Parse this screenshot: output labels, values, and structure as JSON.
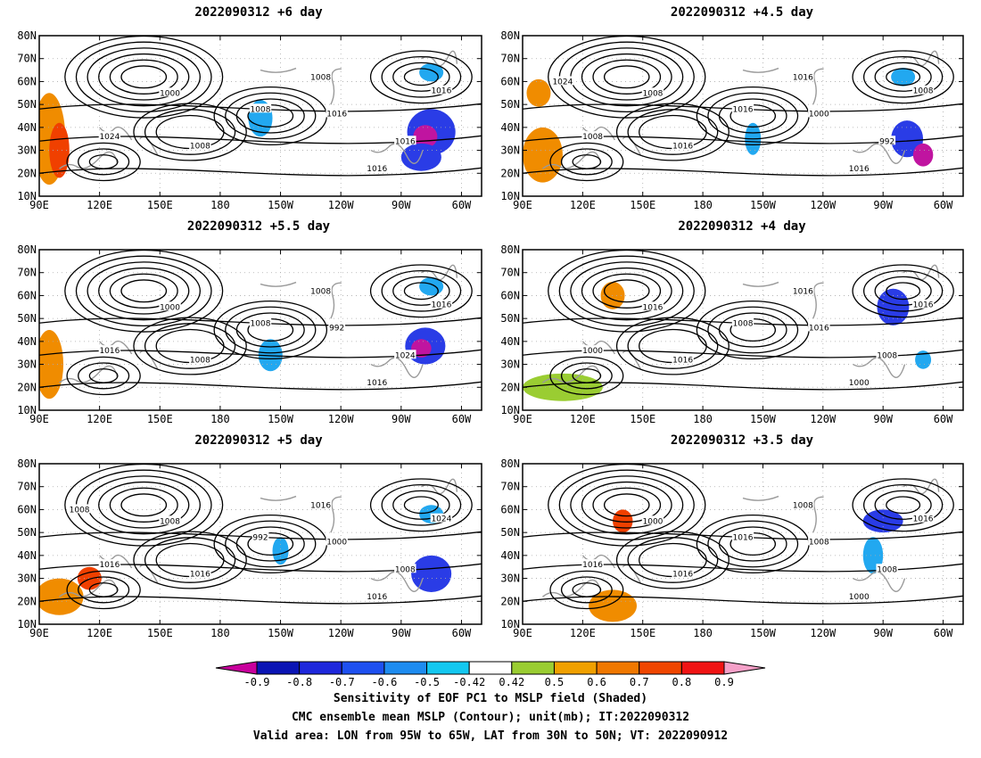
{
  "panels": [
    {
      "title": "2022090312 +6 day",
      "contour_labels": [
        "1000",
        "1008",
        "1016",
        "1024",
        "1016",
        "1016",
        "1016",
        "1008",
        "1008"
      ],
      "sensitivity_blobs": [
        {
          "lon": -75,
          "lat": 38,
          "rx": 12,
          "ry": 10,
          "level": "neg"
        },
        {
          "lon": -78,
          "lat": 36,
          "rx": 6,
          "ry": 5,
          "level": "neg-strong"
        },
        {
          "lon": -80,
          "lat": 27,
          "rx": 10,
          "ry": 6,
          "level": "neg"
        },
        {
          "lon": -75,
          "lat": 64,
          "rx": 6,
          "ry": 4,
          "level": "neg-weak"
        },
        {
          "lon": -160,
          "lat": 44,
          "rx": 6,
          "ry": 8,
          "level": "neg-weak"
        },
        {
          "lon": 95,
          "lat": 35,
          "rx": 8,
          "ry": 20,
          "level": "pos"
        },
        {
          "lon": 100,
          "lat": 30,
          "rx": 5,
          "ry": 12,
          "level": "pos-strong"
        }
      ]
    },
    {
      "title": "2022090312 +4.5 day",
      "contour_labels": [
        "1008",
        "1016",
        "1000",
        "1008",
        "1016",
        "992",
        "1008",
        "1016",
        "1016",
        "1024"
      ],
      "sensitivity_blobs": [
        {
          "lon": -78,
          "lat": 35,
          "rx": 8,
          "ry": 8,
          "level": "neg"
        },
        {
          "lon": -70,
          "lat": 28,
          "rx": 5,
          "ry": 5,
          "level": "neg-strong"
        },
        {
          "lon": -80,
          "lat": 62,
          "rx": 6,
          "ry": 4,
          "level": "neg-weak"
        },
        {
          "lon": -155,
          "lat": 35,
          "rx": 4,
          "ry": 7,
          "level": "neg-weak"
        },
        {
          "lon": 100,
          "lat": 28,
          "rx": 10,
          "ry": 12,
          "level": "pos"
        },
        {
          "lon": 98,
          "lat": 55,
          "rx": 6,
          "ry": 6,
          "level": "pos"
        }
      ]
    },
    {
      "title": "2022090312 +5.5 day",
      "contour_labels": [
        "1000",
        "1008",
        "992",
        "1016",
        "1016",
        "1024",
        "1016",
        "1008",
        "1008"
      ],
      "sensitivity_blobs": [
        {
          "lon": -78,
          "lat": 38,
          "rx": 10,
          "ry": 8,
          "level": "neg"
        },
        {
          "lon": -80,
          "lat": 37,
          "rx": 5,
          "ry": 4,
          "level": "neg-strong"
        },
        {
          "lon": -75,
          "lat": 64,
          "rx": 6,
          "ry": 4,
          "level": "neg-weak"
        },
        {
          "lon": -155,
          "lat": 34,
          "rx": 6,
          "ry": 7,
          "level": "neg-weak"
        },
        {
          "lon": 95,
          "lat": 30,
          "rx": 7,
          "ry": 15,
          "level": "pos"
        }
      ]
    },
    {
      "title": "2022090312 +4 day",
      "contour_labels": [
        "1016",
        "1008",
        "1016",
        "1000",
        "1000",
        "1008",
        "1016",
        "1016",
        "1016"
      ],
      "sensitivity_blobs": [
        {
          "lon": -85,
          "lat": 55,
          "rx": 8,
          "ry": 8,
          "level": "neg"
        },
        {
          "lon": -70,
          "lat": 32,
          "rx": 4,
          "ry": 4,
          "level": "neg-weak"
        },
        {
          "lon": 135,
          "lat": 60,
          "rx": 6,
          "ry": 6,
          "level": "pos"
        },
        {
          "lon": 110,
          "lat": 20,
          "rx": 20,
          "ry": 6,
          "level": "pos-weak"
        }
      ]
    },
    {
      "title": "2022090312 +5 day",
      "contour_labels": [
        "1008",
        "992",
        "1000",
        "1016",
        "1016",
        "1008",
        "1024",
        "1016",
        "1016",
        "1008"
      ],
      "sensitivity_blobs": [
        {
          "lon": -75,
          "lat": 32,
          "rx": 10,
          "ry": 8,
          "level": "neg"
        },
        {
          "lon": -75,
          "lat": 58,
          "rx": 6,
          "ry": 4,
          "level": "neg-weak"
        },
        {
          "lon": -150,
          "lat": 42,
          "rx": 4,
          "ry": 6,
          "level": "neg-weak"
        },
        {
          "lon": 100,
          "lat": 22,
          "rx": 12,
          "ry": 8,
          "level": "pos"
        },
        {
          "lon": 115,
          "lat": 30,
          "rx": 6,
          "ry": 5,
          "level": "pos-strong"
        }
      ]
    },
    {
      "title": "2022090312 +3.5 day",
      "contour_labels": [
        "1000",
        "1016",
        "1008",
        "1016",
        "1000",
        "1008",
        "1016",
        "1016",
        "1008"
      ],
      "sensitivity_blobs": [
        {
          "lon": -90,
          "lat": 55,
          "rx": 10,
          "ry": 5,
          "level": "neg"
        },
        {
          "lon": -95,
          "lat": 40,
          "rx": 5,
          "ry": 8,
          "level": "neg-weak"
        },
        {
          "lon": 135,
          "lat": 18,
          "rx": 12,
          "ry": 7,
          "level": "pos"
        },
        {
          "lon": 140,
          "lat": 55,
          "rx": 5,
          "ry": 5,
          "level": "pos-strong"
        }
      ]
    }
  ],
  "axes": {
    "x_ticks": [
      "90E",
      "120E",
      "150E",
      "180",
      "150W",
      "120W",
      "90W",
      "60W"
    ],
    "y_ticks": [
      "80N",
      "70N",
      "60N",
      "50N",
      "40N",
      "30N",
      "20N",
      "10N"
    ],
    "lon_range": [
      90,
      310
    ],
    "lat_range": [
      10,
      80
    ]
  },
  "colorbar": {
    "labels": [
      "-0.9",
      "-0.8",
      "-0.7",
      "-0.6",
      "-0.5",
      "-0.42",
      "0.42",
      "0.5",
      "0.6",
      "0.7",
      "0.8",
      "0.9"
    ],
    "colors": [
      "#c8009c",
      "#0a14b4",
      "#1e28dc",
      "#1e50f0",
      "#1e8cf0",
      "#14c8f0",
      "#ffffff",
      "#9acd32",
      "#f0a000",
      "#f07800",
      "#f04600",
      "#f01414",
      "#f5a0c8"
    ]
  },
  "shading_colors": {
    "neg": "#2a3ce6",
    "neg-strong": "#c014a0",
    "neg-weak": "#22a8f0",
    "pos": "#f08c00",
    "pos-strong": "#f04000",
    "pos-weak": "#9acd32"
  },
  "caption": {
    "line1": "Sensitivity of EOF PC1 to MSLP field (Shaded)",
    "line2": "CMC ensemble mean MSLP (Contour); unit(mb); IT:2022090312",
    "line3": "Valid area: LON from 95W to 65W, LAT from 30N to 50N; VT: 2022090912"
  }
}
